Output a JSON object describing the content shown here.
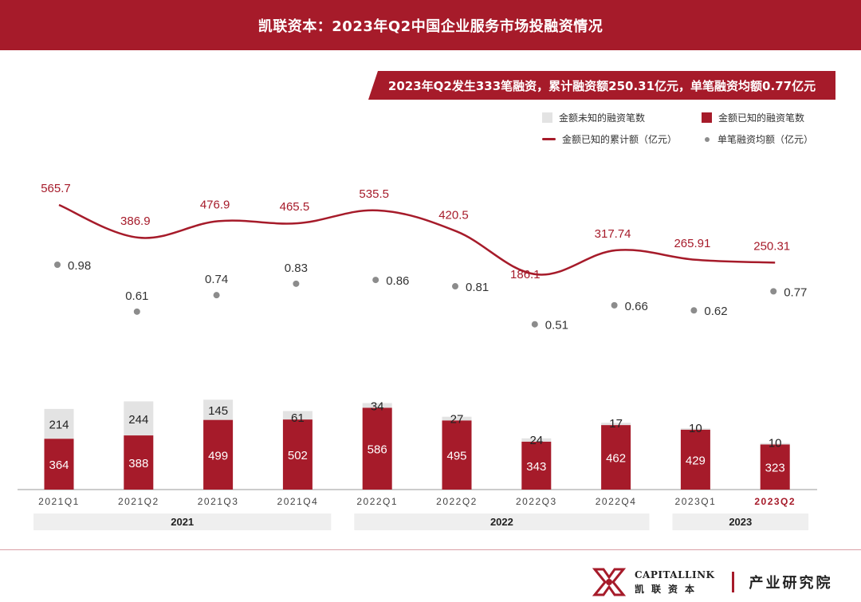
{
  "header": {
    "title": "凯联资本：2023年Q2中国企业服务市场投融资情况",
    "summary": "2023年Q2发生333笔融资，累计融资额250.31亿元，单笔融资均额0.77亿元"
  },
  "legend": {
    "unknown_amount_count": "金额未知的融资笔数",
    "known_amount_count": "金额已知的融资笔数",
    "known_amount_total": "金额已知的累计额（亿元）",
    "avg_amount": "单笔融资均额（亿元）"
  },
  "colors": {
    "brand_red": "#a61b2a",
    "unknown_gray": "#e3e3e3",
    "dot_gray": "#8c8c8c",
    "year_band": "#efefef"
  },
  "chart_data": {
    "type": "bar",
    "stacked": true,
    "categories": [
      "2021Q1",
      "2021Q2",
      "2021Q3",
      "2021Q4",
      "2022Q1",
      "2022Q2",
      "2022Q3",
      "2022Q4",
      "2023Q1",
      "2023Q2"
    ],
    "highlight_category": "2023Q2",
    "series": [
      {
        "name": "金额已知的融资笔数",
        "values": [
          364,
          388,
          499,
          502,
          586,
          495,
          343,
          462,
          429,
          323
        ]
      },
      {
        "name": "金额未知的融资笔数",
        "values": [
          214,
          244,
          145,
          61,
          34,
          27,
          24,
          17,
          10,
          10
        ]
      }
    ],
    "line_series": {
      "name": "金额已知的累计额（亿元）",
      "values": [
        "565.7",
        "386.9",
        "476.9",
        "465.5",
        "535.5",
        "420.5",
        "186.1",
        "317.74",
        "265.91",
        "250.31"
      ]
    },
    "dot_series": {
      "name": "单笔融资均额（亿元）",
      "values": [
        "0.98",
        "0.61",
        "0.74",
        "0.83",
        "0.86",
        "0.81",
        "0.51",
        "0.66",
        "0.62",
        "0.77"
      ]
    },
    "year_groups": [
      {
        "label": "2021",
        "categories": [
          "2021Q1",
          "2021Q2",
          "2021Q3",
          "2021Q4"
        ]
      },
      {
        "label": "2022",
        "categories": [
          "2022Q1",
          "2022Q2",
          "2022Q3",
          "2022Q4"
        ]
      },
      {
        "label": "2023",
        "categories": [
          "2023Q1",
          "2023Q2"
        ]
      }
    ]
  },
  "footer": {
    "logo_en": "CAPITALLINK",
    "logo_cn": "凯联资本",
    "department": "产业研究院"
  }
}
